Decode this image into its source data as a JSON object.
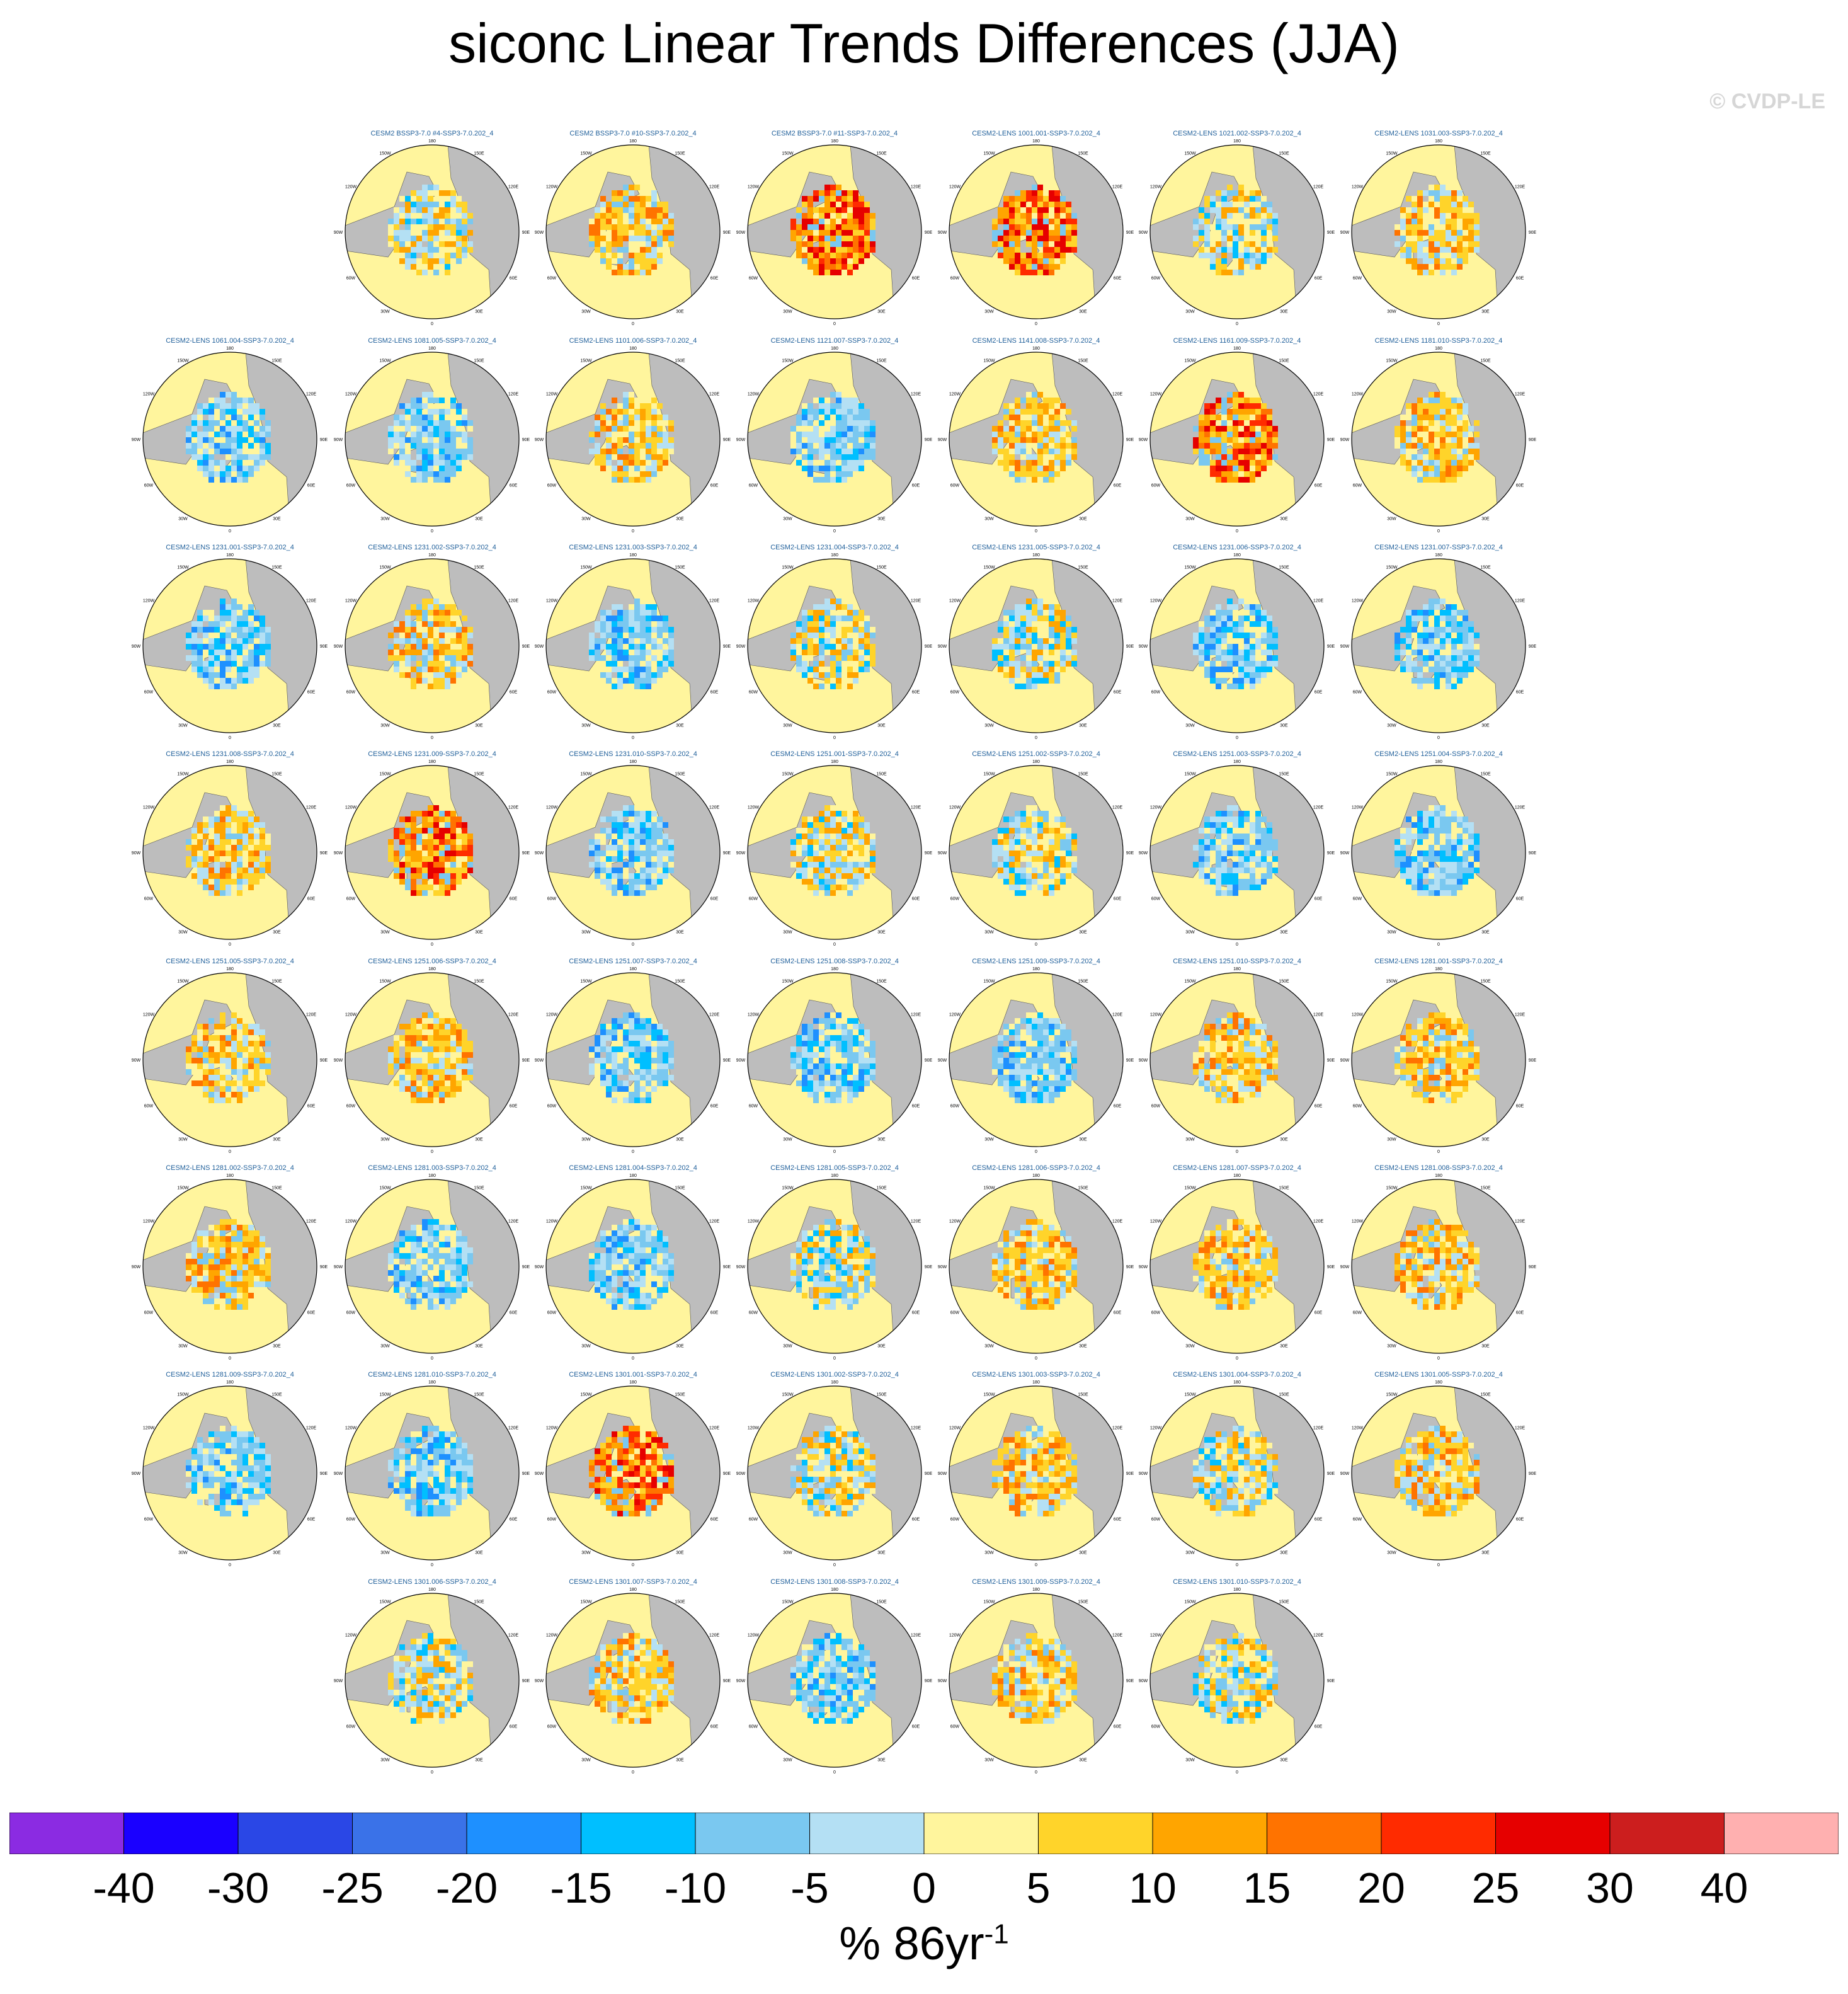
{
  "title": "siconc Linear Trends Differences (JJA)",
  "watermark": "© CVDP-LE",
  "units": {
    "base": "% 86yr",
    "exponent": "-1"
  },
  "panel_lon_labels": [
    "180",
    "150E",
    "120E",
    "90E",
    "60E",
    "30E",
    "0",
    "30W",
    "60W",
    "90W",
    "120W",
    "150W"
  ],
  "panels": [
    "CESM2 BSSP3-7.0 #4-SSP3-7.0.202_4",
    "CESM2 BSSP3-7.0 #10-SSP3-7.0.202_4",
    "CESM2 BSSP3-7.0 #11-SSP3-7.0.202_4",
    "CESM2-LENS 1001.001-SSP3-7.0.202_4",
    "CESM2-LENS 1021.002-SSP3-7.0.202_4",
    "CESM2-LENS 1031.003-SSP3-7.0.202_4",
    "CESM2-LENS 1061.004-SSP3-7.0.202_4",
    "CESM2-LENS 1081.005-SSP3-7.0.202_4",
    "CESM2-LENS 1101.006-SSP3-7.0.202_4",
    "CESM2-LENS 1121.007-SSP3-7.0.202_4",
    "CESM2-LENS 1141.008-SSP3-7.0.202_4",
    "CESM2-LENS 1161.009-SSP3-7.0.202_4",
    "CESM2-LENS 1181.010-SSP3-7.0.202_4",
    "CESM2-LENS 1231.001-SSP3-7.0.202_4",
    "CESM2-LENS 1231.002-SSP3-7.0.202_4",
    "CESM2-LENS 1231.003-SSP3-7.0.202_4",
    "CESM2-LENS 1231.004-SSP3-7.0.202_4",
    "CESM2-LENS 1231.005-SSP3-7.0.202_4",
    "CESM2-LENS 1231.006-SSP3-7.0.202_4",
    "CESM2-LENS 1231.007-SSP3-7.0.202_4",
    "CESM2-LENS 1231.008-SSP3-7.0.202_4",
    "CESM2-LENS 1231.009-SSP3-7.0.202_4",
    "CESM2-LENS 1231.010-SSP3-7.0.202_4",
    "CESM2-LENS 1251.001-SSP3-7.0.202_4",
    "CESM2-LENS 1251.002-SSP3-7.0.202_4",
    "CESM2-LENS 1251.003-SSP3-7.0.202_4",
    "CESM2-LENS 1251.004-SSP3-7.0.202_4",
    "CESM2-LENS 1251.005-SSP3-7.0.202_4",
    "CESM2-LENS 1251.006-SSP3-7.0.202_4",
    "CESM2-LENS 1251.007-SSP3-7.0.202_4",
    "CESM2-LENS 1251.008-SSP3-7.0.202_4",
    "CESM2-LENS 1251.009-SSP3-7.0.202_4",
    "CESM2-LENS 1251.010-SSP3-7.0.202_4",
    "CESM2-LENS 1281.001-SSP3-7.0.202_4",
    "CESM2-LENS 1281.002-SSP3-7.0.202_4",
    "CESM2-LENS 1281.003-SSP3-7.0.202_4",
    "CESM2-LENS 1281.004-SSP3-7.0.202_4",
    "CESM2-LENS 1281.005-SSP3-7.0.202_4",
    "CESM2-LENS 1281.006-SSP3-7.0.202_4",
    "CESM2-LENS 1281.007-SSP3-7.0.202_4",
    "CESM2-LENS 1281.008-SSP3-7.0.202_4",
    "CESM2-LENS 1281.009-SSP3-7.0.202_4",
    "CESM2-LENS 1281.010-SSP3-7.0.202_4",
    "CESM2-LENS 1301.001-SSP3-7.0.202_4",
    "CESM2-LENS 1301.002-SSP3-7.0.202_4",
    "CESM2-LENS 1301.003-SSP3-7.0.202_4",
    "CESM2-LENS 1301.004-SSP3-7.0.202_4",
    "CESM2-LENS 1301.005-SSP3-7.0.202_4",
    "CESM2-LENS 1301.006-SSP3-7.0.202_4",
    "CESM2-LENS 1301.007-SSP3-7.0.202_4",
    "CESM2-LENS 1301.008-SSP3-7.0.202_4",
    "CESM2-LENS 1301.009-SSP3-7.0.202_4",
    "CESM2-LENS 1301.010-SSP3-7.0.202_4"
  ],
  "chart_data": {
    "type": "heatmap",
    "title": "siconc Linear Trends Differences (JJA)",
    "projection": "polar stereographic (Arctic)",
    "colorbar": {
      "levels": [
        "-40",
        "-30",
        "-25",
        "-20",
        "-15",
        "-10",
        "-5",
        "0",
        "5",
        "10",
        "15",
        "20",
        "25",
        "30",
        "40"
      ],
      "colors": [
        "#8b2be2",
        "#1a00ff",
        "#2a47e6",
        "#3a72e8",
        "#1e90ff",
        "#00bfff",
        "#7ac8f0",
        "#b4e0f4",
        "#fff59d",
        "#ffd42a",
        "#ffa500",
        "#ff7300",
        "#ff2b00",
        "#e60000",
        "#cc1e1e",
        "#ffb0b0"
      ]
    },
    "land_color": "#bdbdbd",
    "panel_tones": [
      "mixed",
      "warm",
      "strong-warm",
      "strong-warm",
      "mixed",
      "warm",
      "cool",
      "cool",
      "warm",
      "cool",
      "warm",
      "strong-warm",
      "warm",
      "cool",
      "warm",
      "cool",
      "mixed",
      "mixed",
      "cool",
      "cool",
      "warm",
      "strong-warm",
      "cool",
      "mixed",
      "mixed",
      "cool",
      "cool",
      "warm",
      "warm",
      "cool",
      "cool",
      "cool",
      "warm",
      "warm",
      "warm",
      "cool",
      "cool",
      "mixed",
      "warm",
      "warm",
      "warm",
      "cool",
      "cool",
      "strong-warm",
      "mixed",
      "warm",
      "mixed",
      "warm",
      "mixed",
      "warm",
      "cool",
      "warm",
      "mixed"
    ]
  }
}
